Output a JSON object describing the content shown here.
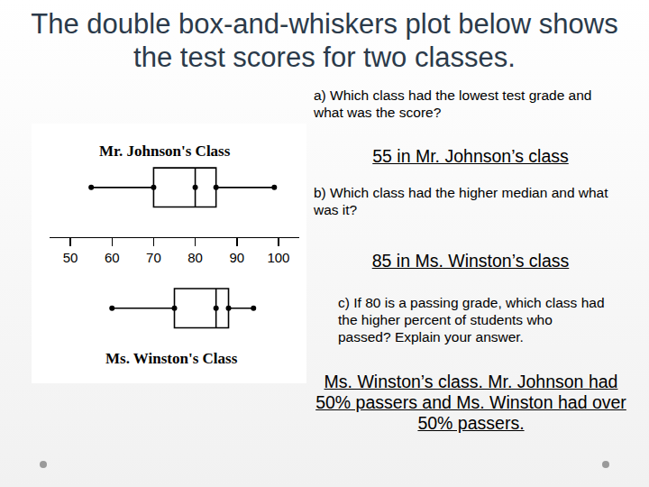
{
  "chart_data": {
    "type": "box",
    "orientation": "horizontal",
    "series": [
      {
        "name": "Mr. Johnson's Class",
        "color": "#000000",
        "marker": "circle",
        "min": 55,
        "q1": 70,
        "median": 80,
        "q3": 85,
        "max": 99
      },
      {
        "name": "Ms. Winston's Class",
        "color": "#000000",
        "marker": "circle",
        "min": 60,
        "q1": 75,
        "median": 85,
        "q3": 88,
        "max": 94
      }
    ],
    "xlim": [
      45,
      105
    ],
    "xticks": [
      50,
      60,
      70,
      80,
      90,
      100
    ],
    "tick_labels": "x",
    "grid": false
  },
  "slide": {
    "title": "The double box-and-whiskers plot below shows the test scores for two classes.",
    "questions": [
      {
        "question": "a) Which class had the lowest test grade and what was the score?",
        "answer": "55 in Mr. Johnson’s class"
      },
      {
        "question": "b) Which class had the higher median and what was it?",
        "answer": "85 in Ms. Winston’s class"
      },
      {
        "question": "c)  If 80 is a passing grade, which class had the higher percent of students who passed? Explain your answer.",
        "answer": "Ms. Winston’s class.  Mr. Johnson had 50% passers and Ms. Winston had over 50% passers."
      }
    ]
  }
}
